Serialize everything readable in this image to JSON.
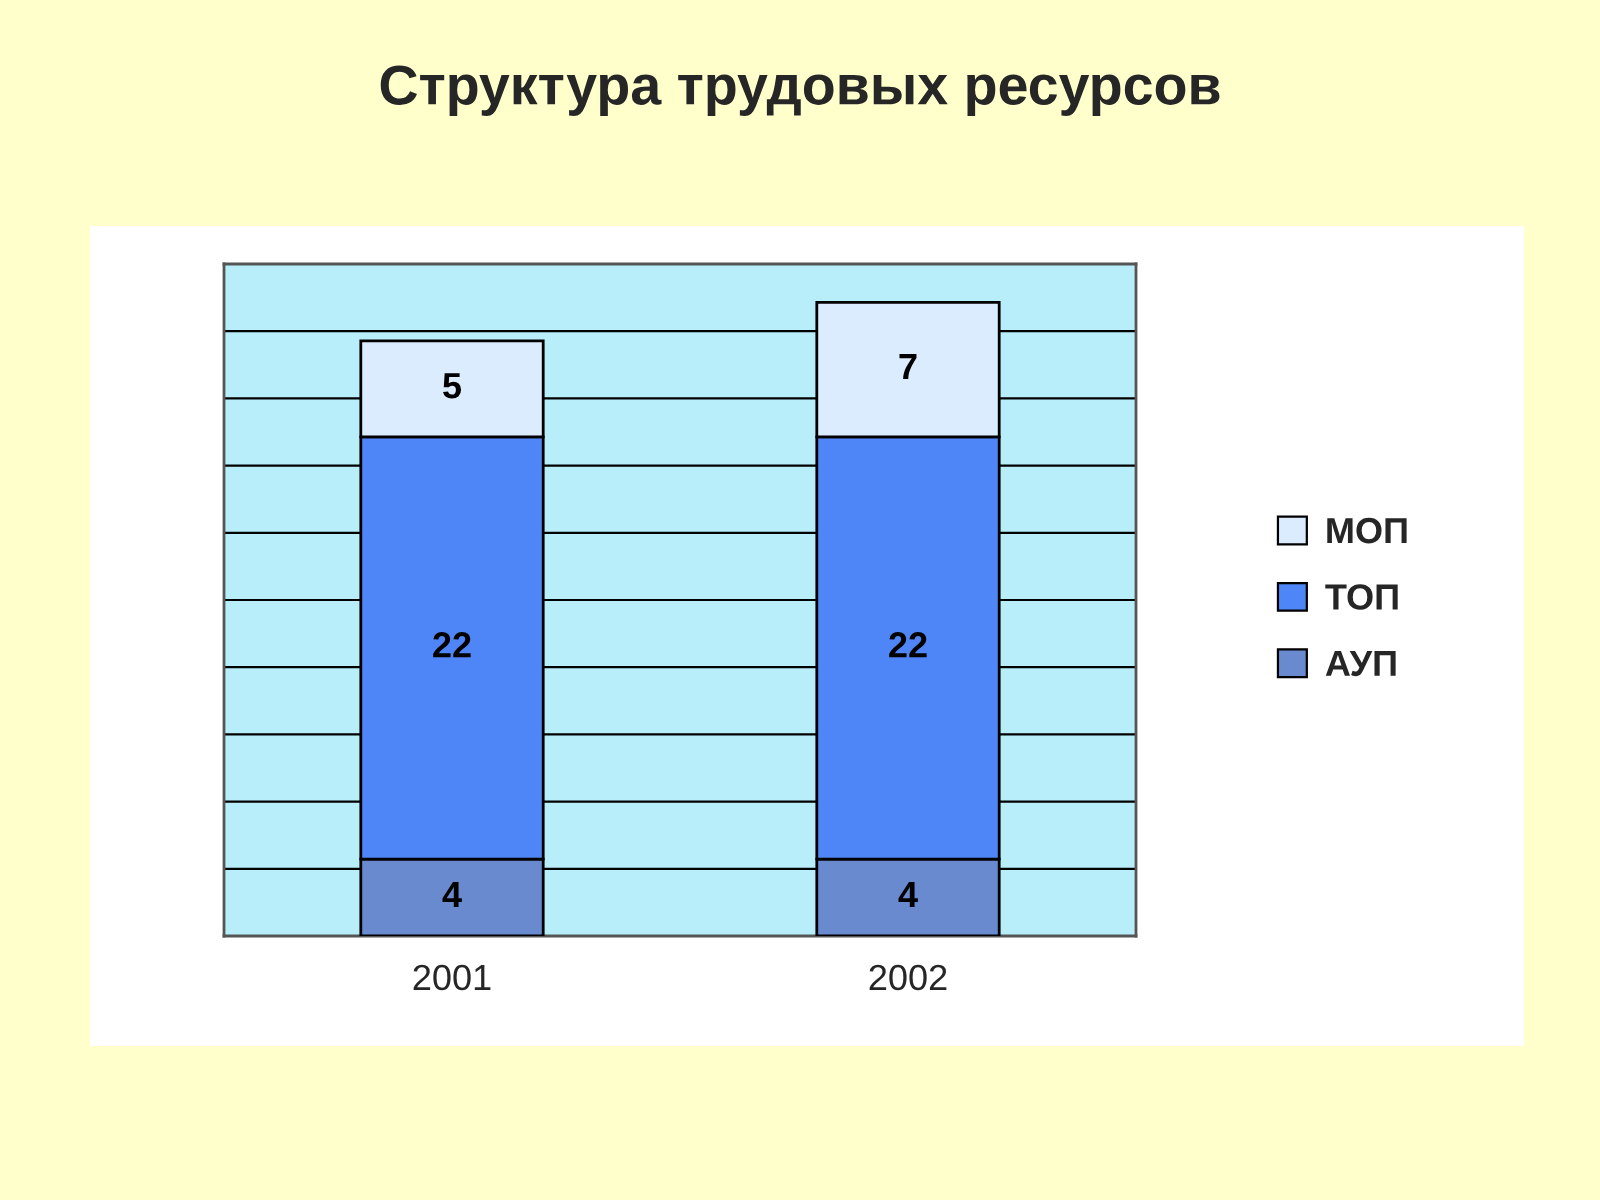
{
  "chart_data": {
    "type": "bar",
    "title": "Структура трудовых ресурсов",
    "categories": [
      "2001",
      "2002"
    ],
    "series": [
      {
        "name": "АУП",
        "color": "#6a8ad0",
        "values": [
          4,
          4
        ]
      },
      {
        "name": "ТОП",
        "color": "#4f86f7",
        "values": [
          22,
          22
        ]
      },
      {
        "name": "МОП",
        "color": "#dcecff",
        "values": [
          5,
          7
        ]
      }
    ],
    "stacked": true,
    "data_labels": true,
    "legend": "right",
    "grid": "y",
    "tick_labels": "x",
    "ylim": [
      0,
      35
    ],
    "yticks": [
      {
        "value": 0,
        "label": null
      },
      {
        "value": 3.5,
        "label": null
      },
      {
        "value": 7,
        "label": null
      },
      {
        "value": 10.5,
        "label": null
      },
      {
        "value": 14,
        "label": null
      },
      {
        "value": 17.5,
        "label": null
      },
      {
        "value": 21,
        "label": null
      },
      {
        "value": 24.5,
        "label": null
      },
      {
        "value": 28,
        "label": null
      },
      {
        "value": 31.5,
        "label": null
      },
      {
        "value": 35,
        "label": null
      }
    ]
  }
}
